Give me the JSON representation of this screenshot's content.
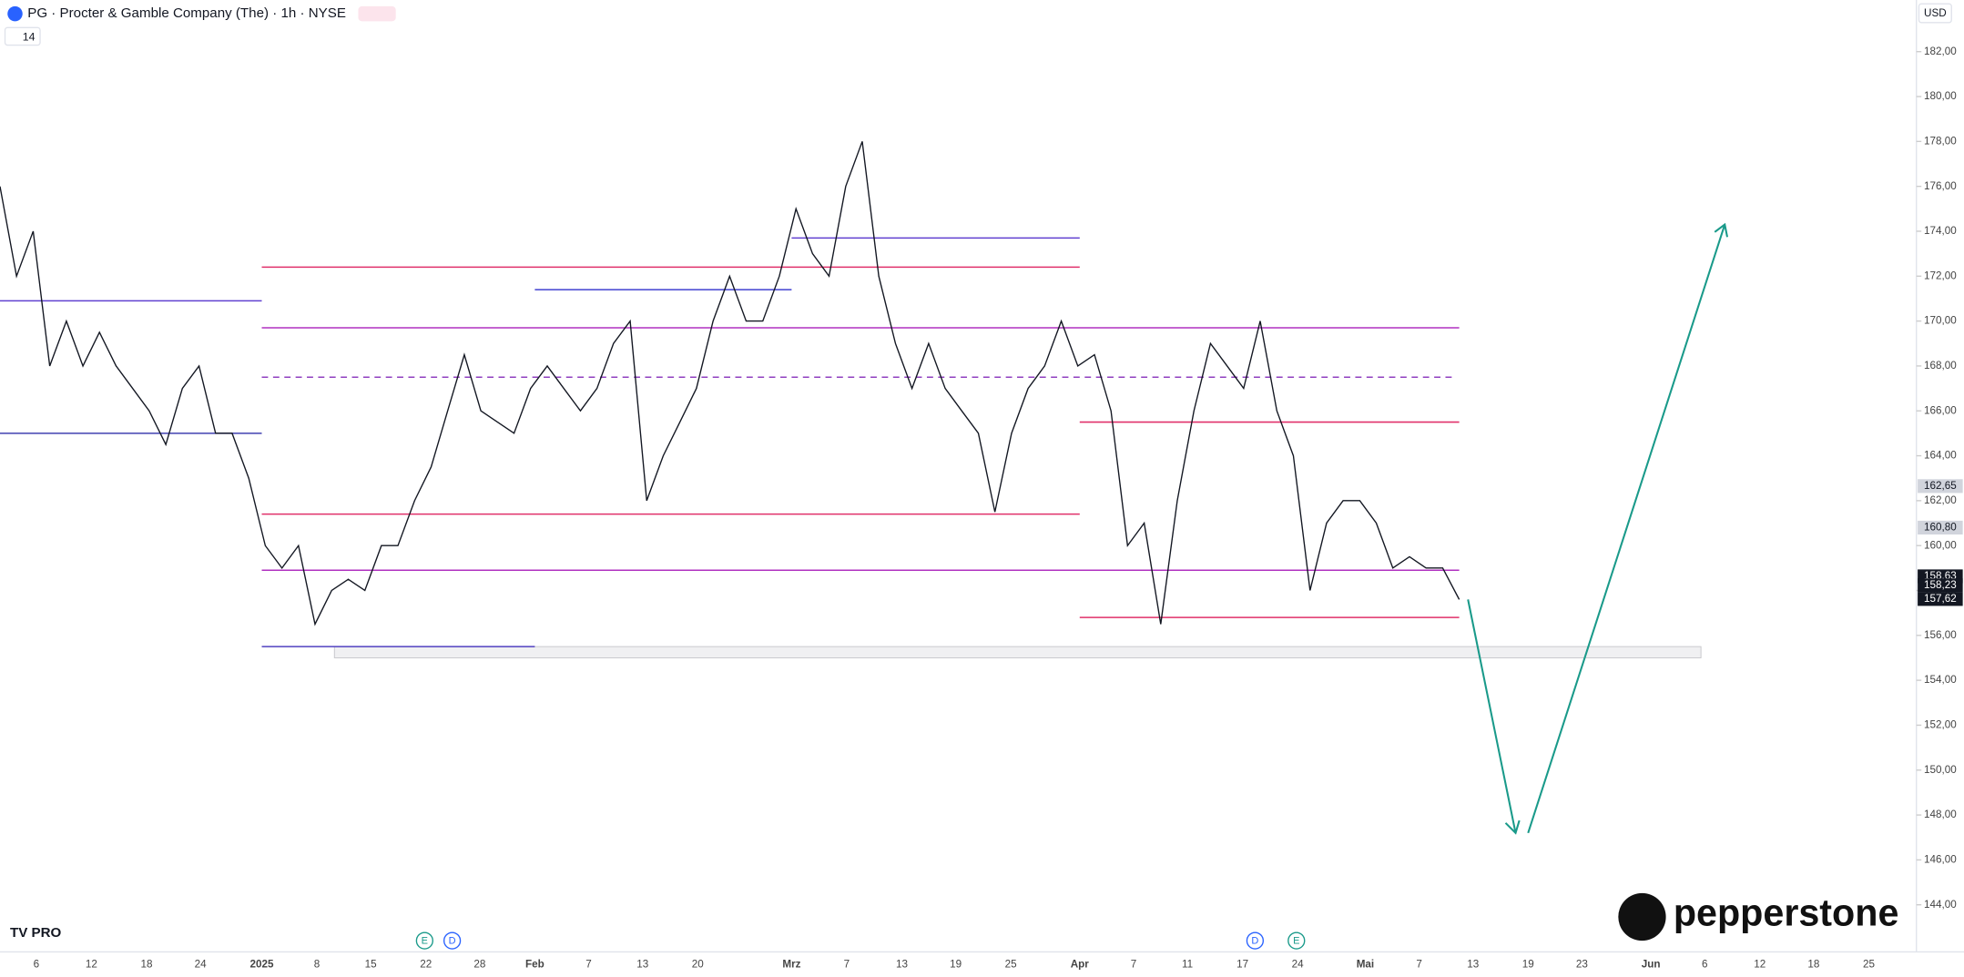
{
  "chart_data": {
    "type": "line",
    "title": "PG · Procter & Gamble Company (The) · 1h · NYSE",
    "currency": "USD",
    "indicator": "14",
    "brand": "pepperstone",
    "series": [
      {
        "name": "PG",
        "color": "#131722",
        "values": [
          176,
          172,
          174,
          168,
          170,
          168,
          169.5,
          168,
          167,
          166,
          164.5,
          167,
          168,
          165,
          165,
          163,
          160,
          159,
          160,
          156.5,
          158,
          158.5,
          158,
          160,
          160,
          162,
          163.5,
          166,
          168.5,
          166,
          165.5,
          165,
          167,
          168,
          167,
          166,
          167,
          169,
          170,
          162,
          164,
          165.5,
          167,
          170,
          172,
          170,
          170,
          172,
          175,
          173,
          172,
          176,
          178,
          172,
          169,
          167,
          169,
          167,
          166,
          165,
          161.5,
          165,
          167,
          168,
          170,
          168,
          168.5,
          166,
          160,
          161,
          156.5,
          162,
          166,
          169,
          168,
          167,
          170,
          166,
          164,
          158,
          161,
          162,
          162,
          161,
          159,
          159.5,
          159,
          159,
          157.6
        ]
      }
    ],
    "ylim": [
      141.9,
      184.3
    ],
    "yticks": [
      {
        "value": 144,
        "label": "144,00"
      },
      {
        "value": 146,
        "label": "146,00"
      },
      {
        "value": 148,
        "label": "148,00"
      },
      {
        "value": 150,
        "label": "150,00"
      },
      {
        "value": 152,
        "label": "152,00"
      },
      {
        "value": 154,
        "label": "154,00"
      },
      {
        "value": 156,
        "label": "156,00"
      },
      {
        "value": 158,
        "label": "158,00"
      },
      {
        "value": 160,
        "label": "160,00"
      },
      {
        "value": 162,
        "label": "162,00"
      },
      {
        "value": 164,
        "label": "164,00"
      },
      {
        "value": 166,
        "label": "166,00"
      },
      {
        "value": 168,
        "label": "168,00"
      },
      {
        "value": 170,
        "label": "170,00"
      },
      {
        "value": 172,
        "label": "172,00"
      },
      {
        "value": 174,
        "label": "174,00"
      },
      {
        "value": 176,
        "label": "176,00"
      },
      {
        "value": 178,
        "label": "178,00"
      },
      {
        "value": 180,
        "label": "180,00"
      },
      {
        "value": 182,
        "label": "182,00"
      }
    ],
    "price_labels": [
      {
        "value": 162.65,
        "label": "162,65"
      },
      {
        "value": 160.8,
        "label": "160,80"
      },
      {
        "value": 158.63,
        "label": "158,63"
      },
      {
        "value": 158.23,
        "label": "158,23"
      },
      {
        "value": 157.62,
        "label": "157,62"
      }
    ],
    "x_labels": [
      "6",
      "12",
      "18",
      "24",
      "2025",
      "8",
      "15",
      "22",
      "28",
      "Feb",
      "7",
      "13",
      "20",
      "Mrz",
      "7",
      "13",
      "19",
      "25",
      "Apr",
      "7",
      "11",
      "17",
      "24",
      "Mai",
      "7",
      "13",
      "19",
      "23",
      "Jun",
      "6",
      "12",
      "18",
      "25"
    ],
    "levels": [
      {
        "value": 172.4,
        "color": "#e0306a"
      },
      {
        "value": 169.7,
        "color": "#b030c0"
      },
      {
        "value": 167.5,
        "color": "#9040c0",
        "dashed": true
      },
      {
        "value": 165.5,
        "color": "#e0306a"
      },
      {
        "value": 161.4,
        "color": "#e0306a"
      },
      {
        "value": 158.9,
        "color": "#b030c0"
      },
      {
        "value": 156.8,
        "color": "#e0306a"
      },
      {
        "value": 155.5,
        "color": "#5040c0"
      },
      {
        "value": 173.7,
        "color": "#6040d0"
      },
      {
        "value": 171.4,
        "color": "#4040d0"
      },
      {
        "value": 165,
        "color": "#4040b0"
      },
      {
        "value": 170.9,
        "color": "#6040d0"
      }
    ],
    "zone": [
      155.0,
      155.5
    ],
    "projection": [
      157.6,
      147.2,
      174.3
    ],
    "events": [
      "E",
      "D",
      "D",
      "E"
    ]
  }
}
